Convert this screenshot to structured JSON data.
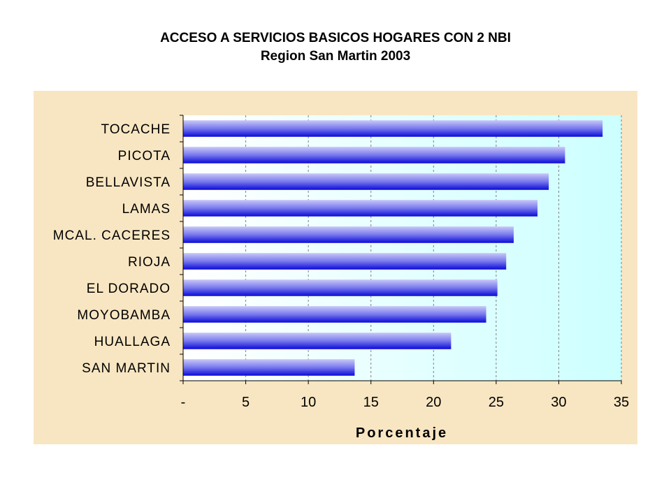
{
  "chart_data": {
    "type": "bar",
    "orientation": "horizontal",
    "title": "ACCESO A SERVICIOS BASICOS HOGARES CON 2 NBI",
    "subtitle": "Region San Martin 2003",
    "categories": [
      "TOCACHE",
      "PICOTA",
      "BELLAVISTA",
      "LAMAS",
      "MCAL. CACERES",
      "RIOJA",
      "EL DORADO",
      "MOYOBAMBA",
      "HUALLAGA",
      "SAN MARTIN"
    ],
    "values": [
      33.5,
      30.5,
      29.2,
      28.3,
      26.4,
      25.8,
      25.1,
      24.2,
      21.4,
      13.7
    ],
    "xlabel": "Porcentaje",
    "ylabel": "",
    "xlim": [
      0,
      35
    ],
    "xticks": [
      0,
      5,
      10,
      15,
      20,
      25,
      30,
      35
    ],
    "xtick_labels": [
      "-",
      "5",
      "10",
      "15",
      "20",
      "25",
      "30",
      "35"
    ],
    "grid": "vertical dashed",
    "legend": "none",
    "colors": {
      "panel_background": "#f8e6c2",
      "plot_background": "#ccffff",
      "bar_light": "#b4b4f4",
      "bar_dark": "#1010e0",
      "axis": "#000000"
    }
  }
}
